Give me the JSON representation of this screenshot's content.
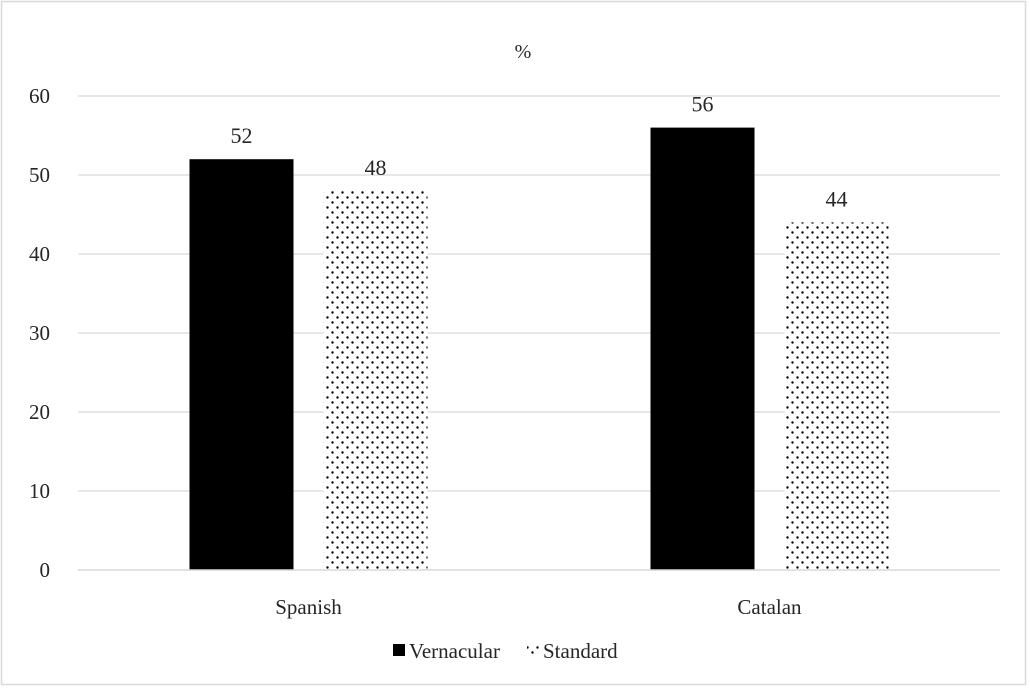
{
  "chart_data": {
    "type": "bar",
    "title": "%",
    "categories": [
      "Spanish",
      "Catalan"
    ],
    "series": [
      {
        "name": "Vernacular",
        "values": [
          52,
          56
        ],
        "color": "#000000",
        "pattern": "solid"
      },
      {
        "name": "Standard",
        "values": [
          48,
          44
        ],
        "color": "#000000",
        "pattern": "dotted"
      }
    ],
    "ylim": [
      0,
      60
    ],
    "yticks": [
      0,
      10,
      20,
      30,
      40,
      50,
      60
    ],
    "grid": true,
    "legend_position": "bottom",
    "xlabel": "",
    "ylabel": ""
  }
}
